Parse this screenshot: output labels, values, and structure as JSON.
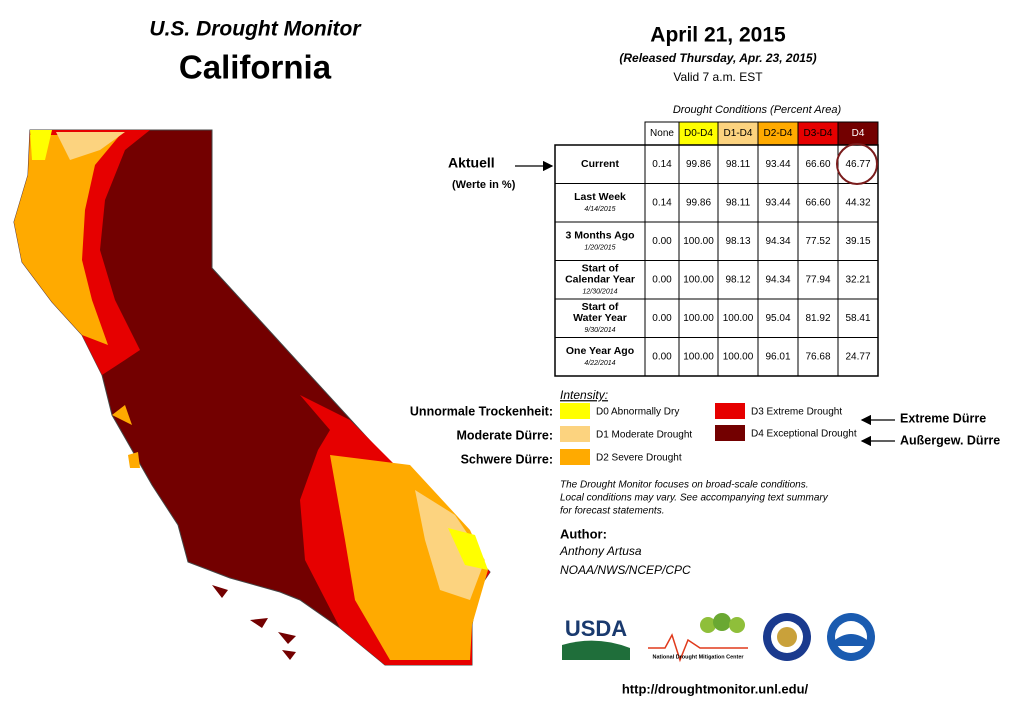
{
  "header": {
    "title": "U.S. Drought Monitor",
    "region": "California"
  },
  "date": {
    "date": "April 21, 2015",
    "released": "(Released Thursday, Apr. 23, 2015)",
    "valid": "Valid 7 a.m. EST"
  },
  "table": {
    "caption": "Drought Conditions (Percent Area)",
    "columns": [
      {
        "label": "None",
        "color": "#ffffff"
      },
      {
        "label": "D0-D4",
        "color": "#ffff00"
      },
      {
        "label": "D1-D4",
        "color": "#fcd37f"
      },
      {
        "label": "D2-D4",
        "color": "#ffaa00"
      },
      {
        "label": "D3-D4",
        "color": "#e60000"
      },
      {
        "label": "D4",
        "color": "#730000"
      }
    ],
    "rows": [
      {
        "label": [
          "Current"
        ],
        "values": [
          "0.14",
          "99.86",
          "98.11",
          "93.44",
          "66.60",
          "46.77"
        ]
      },
      {
        "label": [
          "Last Week"
        ],
        "date": "4/14/2015",
        "values": [
          "0.14",
          "99.86",
          "98.11",
          "93.44",
          "66.60",
          "44.32"
        ]
      },
      {
        "label": [
          "3 Months Ago"
        ],
        "date": "1/20/2015",
        "values": [
          "0.00",
          "100.00",
          "98.13",
          "94.34",
          "77.52",
          "39.15"
        ]
      },
      {
        "label": [
          "Start of",
          "Calendar Year"
        ],
        "date": "12/30/2014",
        "values": [
          "0.00",
          "100.00",
          "98.12",
          "94.34",
          "77.94",
          "32.21"
        ]
      },
      {
        "label": [
          "Start of",
          "Water Year"
        ],
        "date": "9/30/2014",
        "values": [
          "0.00",
          "100.00",
          "100.00",
          "95.04",
          "81.92",
          "58.41"
        ]
      },
      {
        "label": [
          "One Year Ago"
        ],
        "date": "4/22/2014",
        "values": [
          "0.00",
          "100.00",
          "100.00",
          "96.01",
          "76.68",
          "24.77"
        ]
      }
    ]
  },
  "annotations": {
    "current": "Aktuell",
    "unit": "(Werte in %)",
    "d0": "Unnormale Trockenheit:",
    "d1": "Moderate Dürre:",
    "d2": "Schwere Dürre:",
    "d3": "Extreme Dürre",
    "d4": "Außergew. Dürre"
  },
  "legend": {
    "title": "Intensity:",
    "items": [
      {
        "label": "D0 Abnormally Dry",
        "color": "#ffff00"
      },
      {
        "label": "D1 Moderate Drought",
        "color": "#fcd37f"
      },
      {
        "label": "D2 Severe Drought",
        "color": "#ffaa00"
      },
      {
        "label": "D3 Extreme Drought",
        "color": "#e60000"
      },
      {
        "label": "D4 Exceptional Drought",
        "color": "#730000"
      }
    ]
  },
  "note": [
    "The Drought Monitor focuses on broad-scale conditions.",
    "Local conditions may vary. See accompanying text summary",
    "for forecast statements."
  ],
  "author": {
    "heading": "Author:",
    "name": "Anthony Artusa",
    "agency": "NOAA/NWS/NCEP/CPC"
  },
  "logos": {
    "usda": "USDA",
    "ndmc": "National Drought Mitigation Center"
  },
  "url": "http://droughtmonitor.unl.edu/"
}
